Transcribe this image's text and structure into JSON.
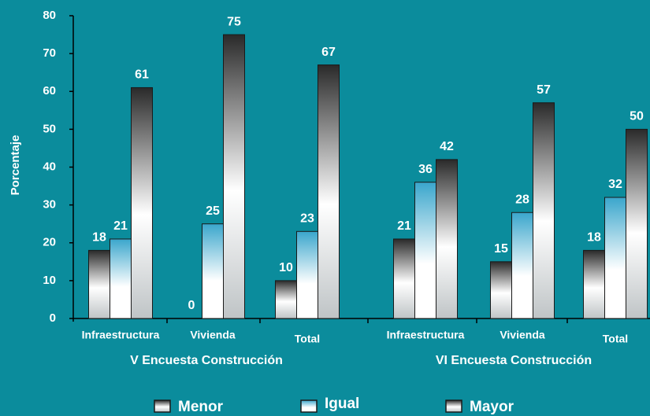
{
  "chart_data": {
    "type": "bar",
    "y_label": "Porcentaje",
    "categories": [
      "Infraestructura",
      "Vivienda",
      "Total",
      "Infraestructura",
      "Vivienda",
      "Total"
    ],
    "groups": [
      "V Encuesta Construcción",
      "VI Encuesta Construcción"
    ],
    "series": [
      {
        "name": "Menor",
        "color": "#2a2a2a",
        "values": [
          18,
          0,
          10,
          21,
          15,
          18
        ]
      },
      {
        "name": "Igual",
        "color": "#3aa6cc",
        "values": [
          21,
          25,
          23,
          36,
          28,
          32
        ]
      },
      {
        "name": "Mayor",
        "color": "#2a2a2a",
        "values": [
          61,
          75,
          67,
          42,
          57,
          50
        ]
      }
    ],
    "ylim": [
      0,
      80
    ],
    "yticks": [
      0,
      10,
      20,
      30,
      40,
      50,
      60,
      70,
      80
    ]
  }
}
